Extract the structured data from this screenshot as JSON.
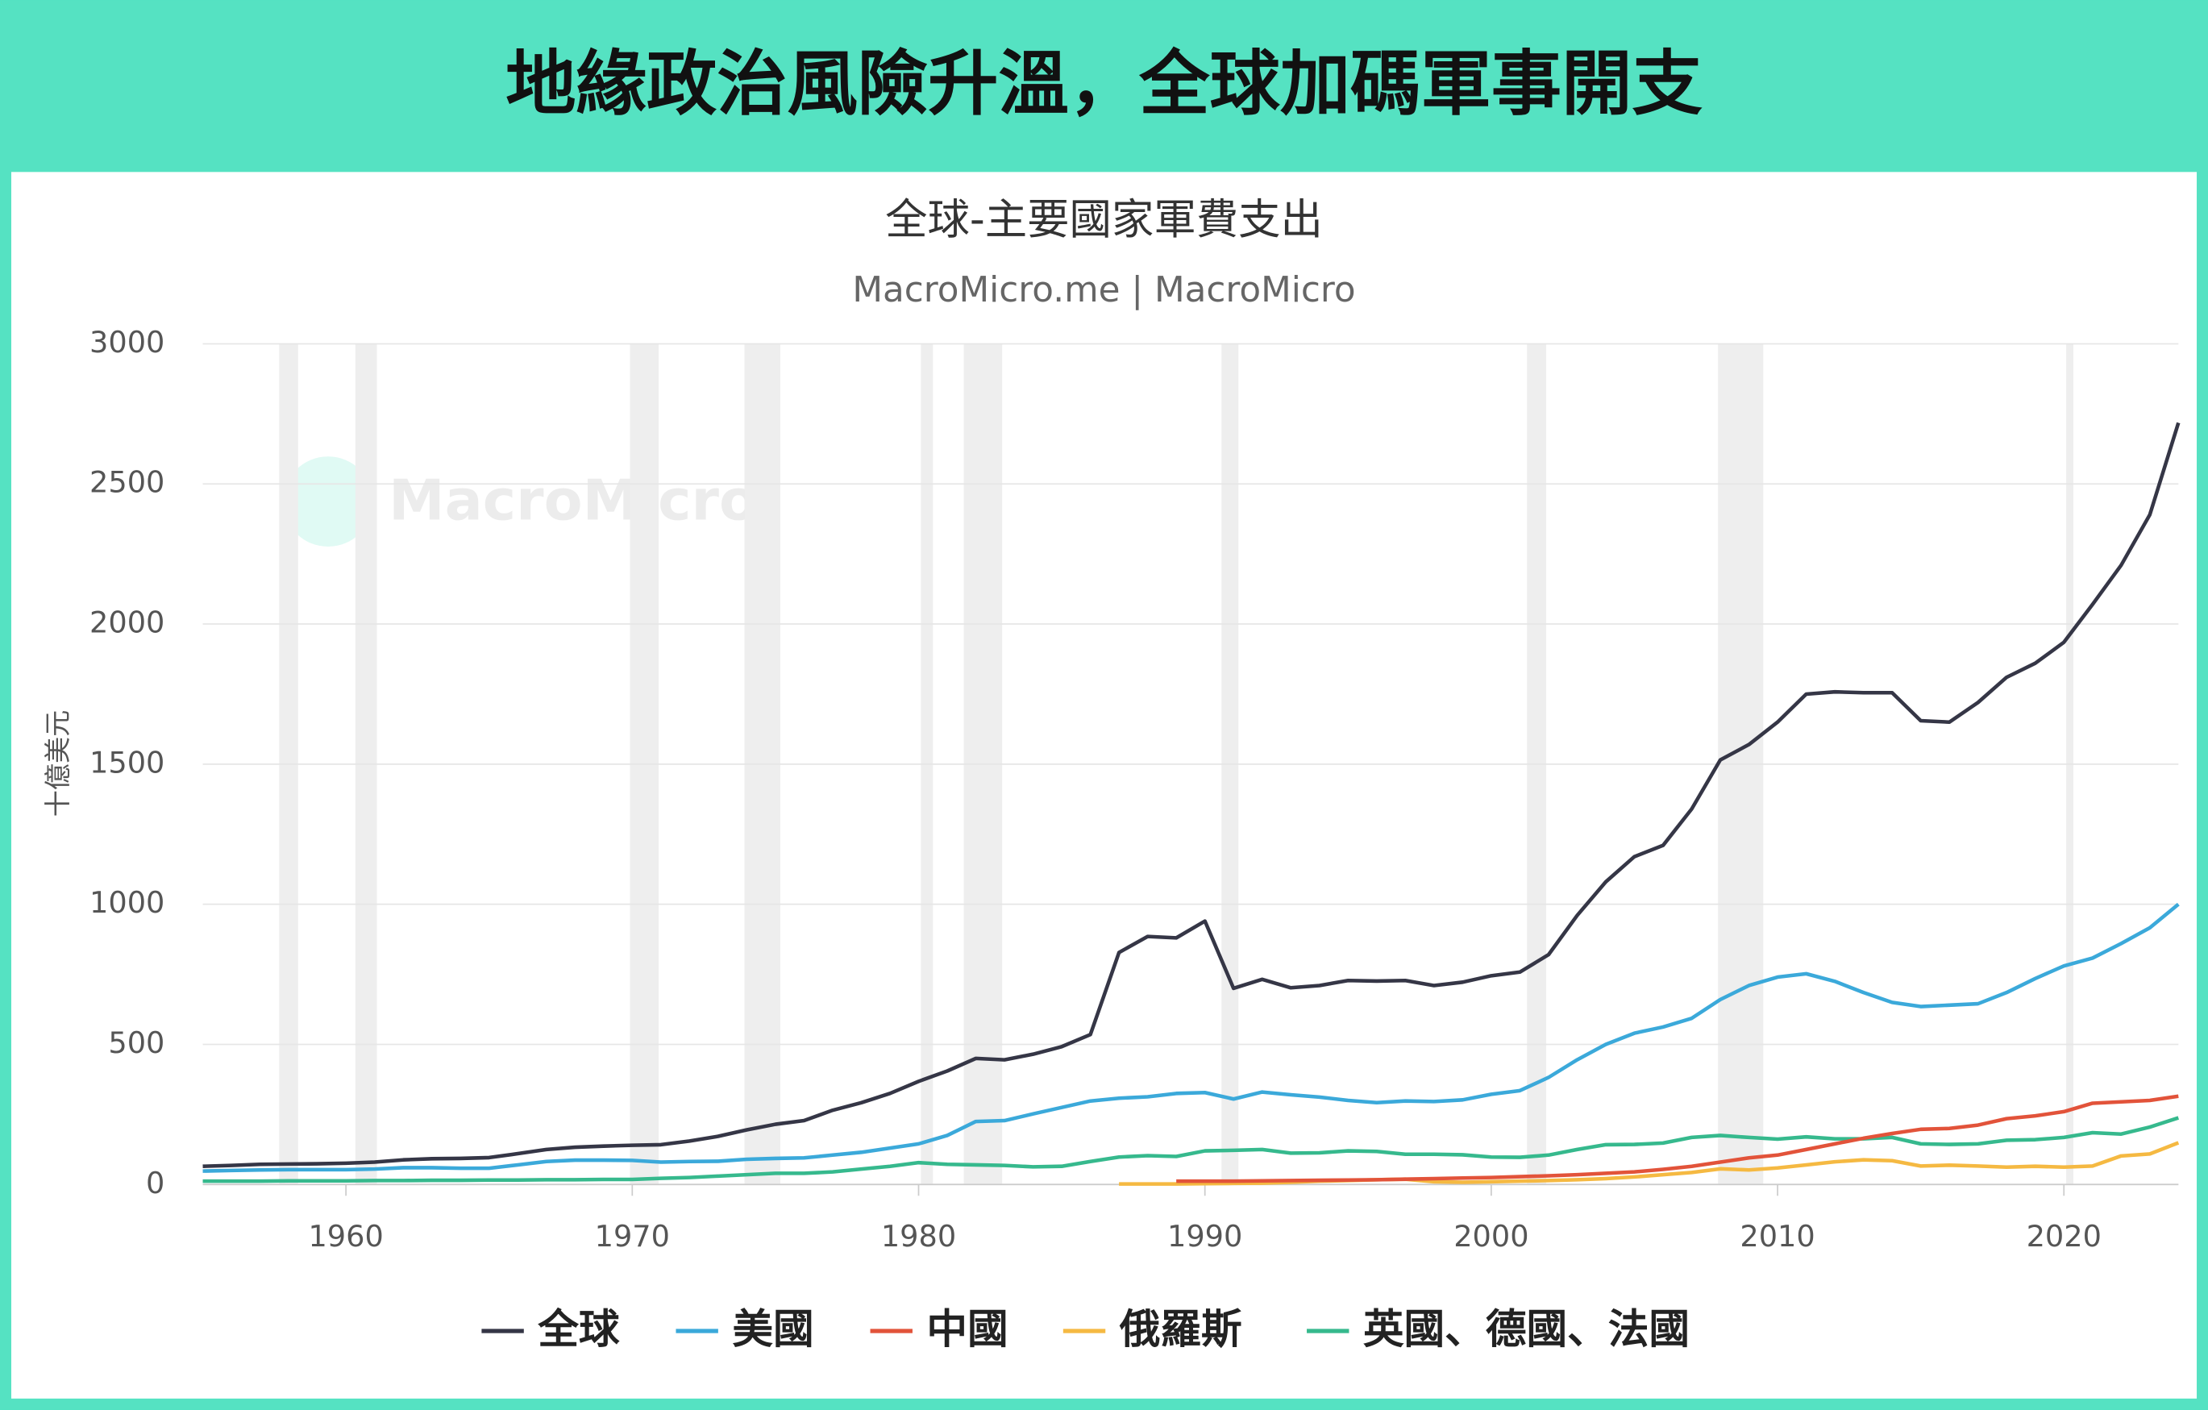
{
  "header": {
    "title": "地緣政治風險升溫，全球加碼軍事開支"
  },
  "chart_data": {
    "type": "line",
    "title": "全球-主要國家軍費支出",
    "subtitle": "MacroMicro.me | MacroMicro",
    "watermark": "MacroMicro",
    "y_label": "十億美元",
    "x": [
      1955,
      1956,
      1957,
      1958,
      1959,
      1960,
      1961,
      1962,
      1963,
      1964,
      1965,
      1966,
      1967,
      1968,
      1969,
      1970,
      1971,
      1972,
      1973,
      1974,
      1975,
      1976,
      1977,
      1978,
      1979,
      1980,
      1981,
      1982,
      1983,
      1984,
      1985,
      1986,
      1987,
      1988,
      1989,
      1990,
      1991,
      1992,
      1993,
      1994,
      1995,
      1996,
      1997,
      1998,
      1999,
      2000,
      2001,
      2002,
      2003,
      2004,
      2005,
      2006,
      2007,
      2008,
      2009,
      2010,
      2011,
      2012,
      2013,
      2014,
      2015,
      2016,
      2017,
      2018,
      2019,
      2020,
      2021,
      2022,
      2023,
      2024
    ],
    "xlim": [
      1955,
      2024
    ],
    "xticks": [
      1960,
      1970,
      1980,
      1990,
      2000,
      2010,
      2020
    ],
    "ylim": [
      0,
      3000
    ],
    "yticks": [
      0,
      500,
      1000,
      1500,
      2000,
      2500,
      3000
    ],
    "grid": true,
    "shaded_ranges_color": "#eeeeee",
    "recessions": [
      [
        1957.67,
        1958.33
      ],
      [
        1960.33,
        1961.08
      ],
      [
        1969.92,
        1970.92
      ],
      [
        1973.92,
        1975.17
      ],
      [
        1980.08,
        1980.5
      ],
      [
        1981.58,
        1982.92
      ],
      [
        1990.58,
        1991.17
      ],
      [
        2001.25,
        2001.92
      ],
      [
        2007.92,
        2009.5
      ],
      [
        2020.08,
        2020.33
      ]
    ],
    "series": [
      {
        "name": "全球",
        "color": "#353646",
        "values": [
          65,
          68,
          72,
          73,
          74,
          76,
          80,
          88,
          92,
          93,
          96,
          110,
          125,
          133,
          137,
          140,
          142,
          155,
          172,
          195,
          215,
          228,
          265,
          292,
          325,
          368,
          405,
          450,
          445,
          465,
          492,
          535,
          828,
          885,
          880,
          940,
          700,
          732,
          702,
          710,
          728,
          726,
          728,
          710,
          722,
          745,
          758,
          820,
          960,
          1080,
          1170,
          1210,
          1340,
          1515,
          1570,
          1650,
          1750,
          1758,
          1755,
          1755,
          1655,
          1650,
          1720,
          1810,
          1860,
          1935,
          2070,
          2210,
          2390,
          2718
        ]
      },
      {
        "name": "美國",
        "color": "#3ba9da",
        "values": [
          48,
          50,
          52,
          53,
          53,
          53,
          55,
          60,
          60,
          58,
          58,
          70,
          82,
          87,
          87,
          86,
          80,
          82,
          83,
          90,
          93,
          95,
          105,
          115,
          130,
          145,
          175,
          225,
          228,
          252,
          275,
          298,
          308,
          313,
          325,
          328,
          305,
          330,
          320,
          312,
          300,
          292,
          298,
          296,
          302,
          322,
          335,
          382,
          445,
          500,
          540,
          562,
          593,
          660,
          710,
          740,
          752,
          725,
          685,
          650,
          635,
          640,
          645,
          685,
          735,
          780,
          808,
          860,
          916,
          1000
        ]
      },
      {
        "name": "中國",
        "color": "#e2533a",
        "values": [
          null,
          null,
          null,
          null,
          null,
          null,
          null,
          null,
          null,
          null,
          null,
          null,
          null,
          null,
          null,
          null,
          null,
          null,
          null,
          null,
          null,
          null,
          null,
          null,
          null,
          null,
          null,
          null,
          null,
          null,
          null,
          null,
          null,
          null,
          12,
          12,
          12,
          13,
          14,
          15,
          16,
          17,
          19,
          21,
          23,
          25,
          28,
          31,
          35,
          40,
          45,
          54,
          65,
          80,
          95,
          105,
          125,
          145,
          165,
          182,
          197,
          200,
          212,
          235,
          245,
          260,
          290,
          295,
          300,
          315
        ]
      },
      {
        "name": "俄羅斯",
        "color": "#f5b942",
        "values": [
          null,
          null,
          null,
          null,
          null,
          null,
          null,
          null,
          null,
          null,
          null,
          null,
          null,
          null,
          null,
          null,
          null,
          null,
          null,
          null,
          null,
          null,
          null,
          null,
          null,
          null,
          null,
          null,
          null,
          null,
          null,
          null,
          2,
          2,
          2,
          3,
          4,
          5,
          8,
          12,
          14,
          17,
          19,
          10,
          8,
          10,
          12,
          14,
          17,
          21,
          27,
          35,
          43,
          56,
          52,
          59,
          70,
          81,
          88,
          85,
          66,
          69,
          66,
          62,
          65,
          62,
          66,
          102,
          109,
          149
        ]
      },
      {
        "name": "英國、德國、法國",
        "color": "#36b98d",
        "values": [
          12,
          12,
          12,
          13,
          13,
          13,
          14,
          14,
          15,
          15,
          16,
          16,
          17,
          17,
          18,
          18,
          22,
          25,
          30,
          35,
          40,
          40,
          45,
          55,
          65,
          78,
          72,
          70,
          68,
          63,
          65,
          82,
          98,
          103,
          100,
          120,
          122,
          125,
          112,
          113,
          120,
          118,
          108,
          108,
          106,
          98,
          97,
          105,
          125,
          142,
          143,
          148,
          168,
          175,
          168,
          162,
          170,
          163,
          163,
          168,
          145,
          143,
          145,
          158,
          160,
          168,
          185,
          180,
          205,
          238
        ]
      }
    ]
  }
}
